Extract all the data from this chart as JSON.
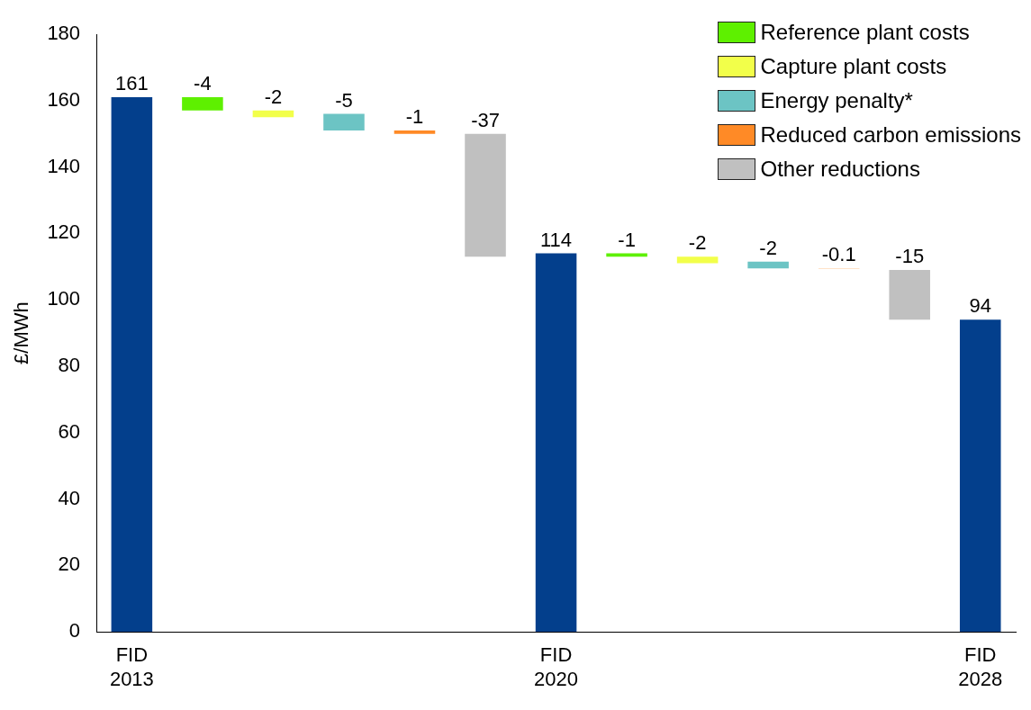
{
  "chart_data": {
    "type": "bar",
    "ylabel": "£/MWh",
    "categories": [
      "FID\n2013",
      null,
      null,
      null,
      null,
      null,
      "FID\n2020",
      null,
      null,
      null,
      null,
      null,
      "FID\n2028"
    ],
    "ylim": [
      0,
      180
    ],
    "yticks": [
      0,
      20,
      40,
      60,
      80,
      100,
      120,
      140,
      160,
      180
    ],
    "grid": false,
    "legend": "top right",
    "data_labels": true,
    "series": [
      {
        "color": "#033f8c",
        "values": [
          161,
          null,
          null,
          null,
          null,
          null,
          114,
          null,
          null,
          null,
          null,
          null,
          94
        ],
        "base": [
          0,
          null,
          null,
          null,
          null,
          null,
          0,
          null,
          null,
          null,
          null,
          null,
          0
        ]
      },
      {
        "name": "Reference plant costs",
        "color": "#5ef000",
        "values": [
          null,
          -4,
          null,
          null,
          null,
          null,
          null,
          -1,
          null,
          null,
          null,
          null,
          null
        ],
        "base": [
          null,
          161,
          null,
          null,
          null,
          null,
          null,
          114,
          null,
          null,
          null,
          null,
          null
        ]
      },
      {
        "name": "Capture plant costs",
        "color": "#f2ff4a",
        "values": [
          null,
          null,
          -2,
          null,
          null,
          null,
          null,
          null,
          -2,
          null,
          null,
          null,
          null
        ],
        "base": [
          null,
          null,
          157,
          null,
          null,
          null,
          null,
          null,
          113,
          null,
          null,
          null,
          null
        ]
      },
      {
        "name": "Energy penalty*",
        "color": "#6cc4c4",
        "values": [
          null,
          null,
          null,
          -5,
          null,
          null,
          null,
          null,
          null,
          -2,
          null,
          null,
          null
        ],
        "base": [
          null,
          null,
          null,
          156,
          null,
          null,
          null,
          null,
          null,
          111.5,
          null,
          null,
          null
        ]
      },
      {
        "name": "Reduced carbon emissions",
        "color": "#ff8a26",
        "values": [
          null,
          null,
          null,
          null,
          -1,
          null,
          null,
          null,
          null,
          null,
          -0.1,
          null,
          null
        ],
        "base": [
          null,
          null,
          null,
          null,
          151,
          null,
          null,
          null,
          null,
          null,
          109.5,
          null,
          null
        ]
      },
      {
        "name": "Other reductions",
        "color": "#c0c0c0",
        "values": [
          null,
          null,
          null,
          null,
          null,
          -37,
          null,
          null,
          null,
          null,
          null,
          -15,
          null
        ],
        "base": [
          null,
          null,
          null,
          null,
          null,
          150,
          null,
          null,
          null,
          null,
          null,
          109,
          null
        ]
      }
    ]
  }
}
